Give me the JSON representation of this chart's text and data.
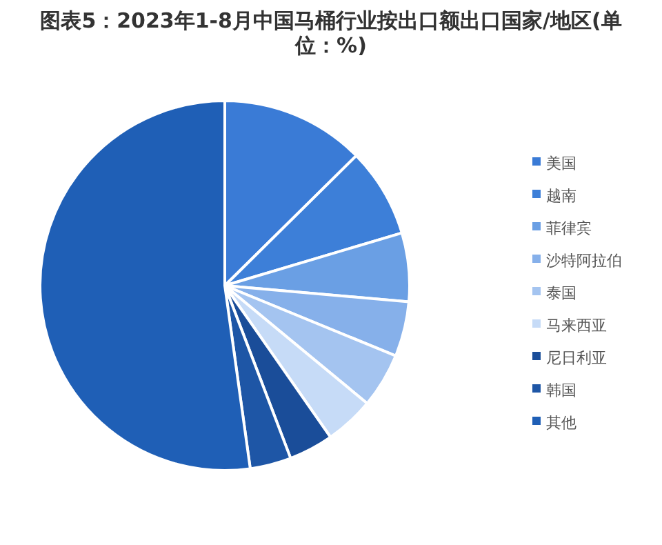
{
  "chart_data": {
    "type": "pie",
    "title": "图表5：2023年1-8月中国马桶行业按出口额出口国家/地区(单位：%)",
    "categories": [
      "美国",
      "越南",
      "菲律宾",
      "沙特阿拉伯",
      "泰国",
      "马来西亚",
      "尼日利亚",
      "韩国",
      "其他"
    ],
    "values": [
      12.6,
      7.8,
      6.0,
      4.8,
      4.8,
      4.3,
      3.9,
      3.6,
      52.2
    ],
    "colors": [
      "#3a7bd6",
      "#3d7fd8",
      "#6a9fe4",
      "#86b0ea",
      "#a4c4f0",
      "#c6dbf7",
      "#1a4d99",
      "#1e56a6",
      "#1f5fb6"
    ],
    "legend": "right"
  }
}
